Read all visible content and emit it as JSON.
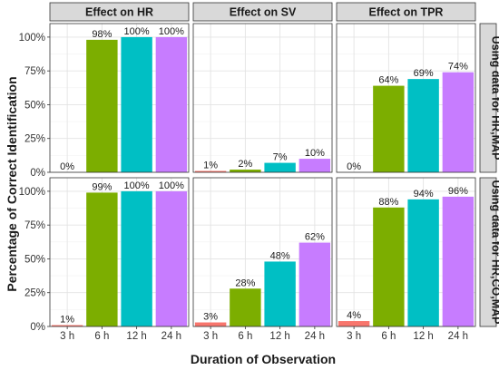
{
  "chart_data": {
    "type": "bar",
    "xlabel": "Duration of Observation",
    "ylabel": "Percentage of Correct Identification",
    "ylim": [
      0,
      110
    ],
    "yticks": [
      "0%",
      "25%",
      "50%",
      "75%",
      "100%"
    ],
    "ytick_values": [
      0,
      25,
      50,
      75,
      100
    ],
    "categories": [
      "3 h",
      "6 h",
      "12 h",
      "24 h"
    ],
    "colors": [
      "#F8766D",
      "#7CAE00",
      "#00BFC4",
      "#C77CFF"
    ],
    "grid": true,
    "legend": "none",
    "columns": [
      "Effect on HR",
      "Effect on SV",
      "Effect on TPR"
    ],
    "rows": [
      "Using data for HR,MAP",
      "Using data for HR,CO,MAP"
    ],
    "panels": [
      {
        "column": "Effect on HR",
        "row": "Using data for HR,MAP",
        "values": [
          0,
          98,
          100,
          100
        ],
        "labels": [
          "0%",
          "98%",
          "100%",
          "100%"
        ]
      },
      {
        "column": "Effect on SV",
        "row": "Using data for HR,MAP",
        "values": [
          1,
          2,
          7,
          10
        ],
        "labels": [
          "1%",
          "2%",
          "7%",
          "10%"
        ]
      },
      {
        "column": "Effect on TPR",
        "row": "Using data for HR,MAP",
        "values": [
          0,
          64,
          69,
          74
        ],
        "labels": [
          "0%",
          "64%",
          "69%",
          "74%"
        ]
      },
      {
        "column": "Effect on HR",
        "row": "Using data for HR,CO,MAP",
        "values": [
          1,
          99,
          100,
          100
        ],
        "labels": [
          "1%",
          "99%",
          "100%",
          "100%"
        ]
      },
      {
        "column": "Effect on SV",
        "row": "Using data for HR,CO,MAP",
        "values": [
          3,
          28,
          48,
          62
        ],
        "labels": [
          "3%",
          "28%",
          "48%",
          "62%"
        ]
      },
      {
        "column": "Effect on TPR",
        "row": "Using data for HR,CO,MAP",
        "values": [
          4,
          88,
          94,
          96
        ],
        "labels": [
          "4%",
          "88%",
          "94%",
          "96%"
        ]
      }
    ]
  }
}
